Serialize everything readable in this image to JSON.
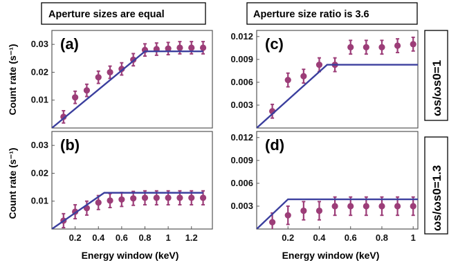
{
  "headers": {
    "left": "Aperture sizes are equal",
    "right": "Aperture size ratio is 3.6"
  },
  "side_labels": {
    "top": "ωs/ωs0=1",
    "bottom": "ωs/ωs0=1.3"
  },
  "ylabel_top": "Count rate (s⁻¹)",
  "ylabel_bottom": "Count rate (s⁻¹)",
  "xlabel_left": "Energy window (keV)",
  "xlabel_right": "Energy window (keV)",
  "colors": {
    "model_line": "#3b3f9e",
    "data_points": "#9c3d78"
  },
  "chart_data": [
    {
      "panel": "(a)",
      "type": "line",
      "xlim": [
        0,
        1.38
      ],
      "ylim": [
        0,
        0.035
      ],
      "xticks": [],
      "yticks": [
        "0.01",
        "0.02",
        "0.03"
      ],
      "ytick_values": [
        0.01,
        0.02,
        0.03
      ],
      "model_line": {
        "x": [
          0,
          0.8,
          1.3
        ],
        "y": [
          0,
          0.0275,
          0.0275
        ]
      },
      "points": {
        "x": [
          0.1,
          0.2,
          0.3,
          0.4,
          0.5,
          0.6,
          0.7,
          0.8,
          0.9,
          1.0,
          1.1,
          1.2,
          1.3
        ],
        "y": [
          0.004,
          0.011,
          0.0135,
          0.0182,
          0.02,
          0.0212,
          0.0245,
          0.028,
          0.0283,
          0.0285,
          0.0288,
          0.0288,
          0.0288
        ],
        "err": [
          0.0022,
          0.0022,
          0.0022,
          0.0022,
          0.0022,
          0.0022,
          0.0022,
          0.0022,
          0.0022,
          0.0022,
          0.0022,
          0.0022,
          0.0022
        ]
      }
    },
    {
      "panel": "(b)",
      "type": "line",
      "xlim": [
        0,
        1.38
      ],
      "ylim": [
        0,
        0.035
      ],
      "xticks": [
        "0.2",
        "0.4",
        "0.6",
        "0.8",
        "1",
        "1.2"
      ],
      "xtick_values": [
        0.2,
        0.4,
        0.6,
        0.8,
        1.0,
        1.2
      ],
      "yticks": [
        "0.01",
        "0.02",
        "0.03"
      ],
      "ytick_values": [
        0.01,
        0.02,
        0.03
      ],
      "model_line": {
        "x": [
          0,
          0.45,
          1.3
        ],
        "y": [
          0,
          0.013,
          0.013
        ]
      },
      "points": {
        "x": [
          0.1,
          0.2,
          0.3,
          0.4,
          0.5,
          0.6,
          0.7,
          0.8,
          0.9,
          1.0,
          1.1,
          1.2,
          1.3
        ],
        "y": [
          0.003,
          0.0062,
          0.0075,
          0.0095,
          0.0102,
          0.0106,
          0.011,
          0.0112,
          0.0112,
          0.0112,
          0.0112,
          0.0112,
          0.0112
        ],
        "err": [
          0.0025,
          0.0025,
          0.0025,
          0.0025,
          0.0025,
          0.0025,
          0.0025,
          0.0025,
          0.0025,
          0.0025,
          0.0025,
          0.0025,
          0.0025
        ]
      }
    },
    {
      "panel": "(c)",
      "type": "line",
      "xlim": [
        0,
        1.03
      ],
      "ylim": [
        0,
        0.0128
      ],
      "xticks": [],
      "yticks": [
        "0.003",
        "0.006",
        "0.009",
        "0.012"
      ],
      "ytick_values": [
        0.003,
        0.006,
        0.009,
        0.012
      ],
      "model_line": {
        "x": [
          0,
          0.45,
          1.03
        ],
        "y": [
          0,
          0.0083,
          0.0083
        ]
      },
      "points": {
        "x": [
          0.1,
          0.2,
          0.3,
          0.4,
          0.5,
          0.6,
          0.7,
          0.8,
          0.9,
          1.0
        ],
        "y": [
          0.0022,
          0.0063,
          0.0068,
          0.0083,
          0.0083,
          0.0106,
          0.0106,
          0.0106,
          0.0108,
          0.011
        ],
        "err": [
          0.0009,
          0.0009,
          0.0009,
          0.0009,
          0.0009,
          0.0009,
          0.0009,
          0.0009,
          0.0009,
          0.0009
        ]
      }
    },
    {
      "panel": "(d)",
      "type": "line",
      "xlim": [
        0,
        1.03
      ],
      "ylim": [
        0,
        0.0128
      ],
      "xticks": [
        "0.2",
        "0.4",
        "0.6",
        "0.8",
        "1"
      ],
      "xtick_values": [
        0.2,
        0.4,
        0.6,
        0.8,
        1.0
      ],
      "yticks": [
        "0.003",
        "0.006",
        "0.009",
        "0.012"
      ],
      "ytick_values": [
        0.003,
        0.006,
        0.009,
        0.012
      ],
      "model_line": {
        "x": [
          0,
          0.2,
          1.03
        ],
        "y": [
          0,
          0.0039,
          0.0039
        ]
      },
      "points": {
        "x": [
          0.1,
          0.2,
          0.3,
          0.4,
          0.5,
          0.6,
          0.7,
          0.8,
          0.9,
          1.0
        ],
        "y": [
          0.0009,
          0.0018,
          0.0024,
          0.0024,
          0.003,
          0.003,
          0.003,
          0.003,
          0.003,
          0.003
        ],
        "err": [
          0.0012,
          0.0012,
          0.0012,
          0.0012,
          0.0012,
          0.0012,
          0.0012,
          0.0012,
          0.0012,
          0.0012
        ]
      }
    }
  ]
}
